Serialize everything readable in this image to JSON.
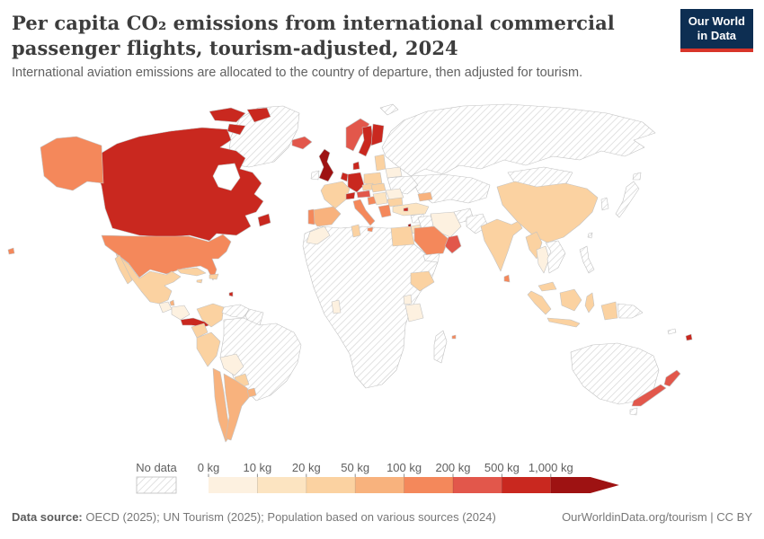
{
  "header": {
    "title": "Per capita CO₂ emissions from international commercial passenger flights, tourism-adjusted, 2024",
    "subtitle": "International aviation emissions are allocated to the country of departure, then adjusted for tourism."
  },
  "logo": {
    "line1": "Our World",
    "line2": "in Data",
    "bg_color": "#0d2e52",
    "accent_color": "#d8352a"
  },
  "legend": {
    "no_data_label": "No data",
    "tick_labels": [
      "0 kg",
      "10 kg",
      "20 kg",
      "50 kg",
      "100 kg",
      "200 kg",
      "500 kg",
      "1,000 kg"
    ],
    "colors": [
      "#fdf1e0",
      "#fce4c1",
      "#fbd2a1",
      "#f8b27d",
      "#f4885b",
      "#e2574b",
      "#c9281f",
      "#9e1212"
    ]
  },
  "footer": {
    "source_label": "Data source:",
    "source_text": " OECD (2025); UN Tourism (2025); Population based on various sources (2024)",
    "link_text": "OurWorldinData.org/tourism | CC BY"
  },
  "chart_data": {
    "type": "choropleth-map",
    "title": "Per capita CO₂ emissions from international commercial passenger flights, tourism-adjusted, 2024",
    "unit": "kg",
    "bins": [
      "0-10 kg",
      "10-20 kg",
      "20-50 kg",
      "50-100 kg",
      "100-200 kg",
      "200-500 kg",
      "500-1,000 kg",
      "1,000+ kg"
    ],
    "bin_colors": [
      "#fdf1e0",
      "#fce4c1",
      "#fbd2a1",
      "#f8b27d",
      "#f4885b",
      "#e2574b",
      "#c9281f",
      "#9e1212"
    ],
    "no_data_style": "diagonal-hatch",
    "legend_position": "bottom",
    "countries": {
      "greenland": "no-data",
      "svalbard": "no-data",
      "canada": 6,
      "united-states": 4,
      "hawaii": 4,
      "mexico": 2,
      "guatemala": 0,
      "belize": 3,
      "honduras-nicaragua": 0,
      "costa-rica-panama": 6,
      "cuba": 2,
      "hispaniola": 2,
      "jamaica": 2,
      "trinidad": 6,
      "colombia": 2,
      "venezuela": "no-data",
      "guyanas": "no-data",
      "ecuador": 2,
      "peru": 2,
      "brazil": "no-data",
      "bolivia": 0,
      "paraguay": 2,
      "chile": 3,
      "argentina": 3,
      "uruguay": 3,
      "iceland": 5,
      "united-kingdom": 7,
      "ireland": "no-data",
      "norway": 5,
      "sweden": 6,
      "finland": 6,
      "denmark": 6,
      "germany": 6,
      "benelux": 6,
      "france": 2,
      "switzerland": 6,
      "austria": 5,
      "czechia": 2,
      "poland": 2,
      "italy": 4,
      "spain": 3,
      "portugal": 4,
      "baltics": 2,
      "belarus": 0,
      "ukraine": "no-data",
      "romania": 0,
      "hungary-slovakia": 2,
      "serbia-balkans": 1,
      "croatia": 4,
      "greece": 4,
      "bulgaria": 2,
      "russia": "no-data",
      "central-asia": "no-data",
      "mongolia": "no-data",
      "china": 2,
      "taiwan": "no-data",
      "south-korea": "no-data",
      "japan": "no-data",
      "india": 2,
      "sri-lanka": 4,
      "pakistan": "no-data",
      "afghanistan": "no-data",
      "iran": 0,
      "iraq": "no-data",
      "saudi-arabia": 4,
      "uae-oman": 5,
      "yemen": "no-data",
      "israel": 7,
      "jordan": 1,
      "syria": "no-data",
      "turkey": 1,
      "caucasus": 3,
      "cyprus": 6,
      "africa-other": "no-data",
      "morocco": 0,
      "tunisia": 2,
      "egypt": 2,
      "ghana": 0,
      "ethiopia": 2,
      "uganda": 0,
      "tanzania": 0,
      "madagascar": "no-data",
      "mauritius": 4,
      "myanmar": 2,
      "thailand": 0,
      "indochina": "no-data",
      "malaysia": 2,
      "indonesia": 2,
      "philippines": "no-data",
      "papua-new-guinea": "no-data",
      "australia": "no-data",
      "tasmania": "no-data",
      "new-zealand": 5,
      "fiji": 6,
      "new-caledonia": "no-data"
    }
  }
}
